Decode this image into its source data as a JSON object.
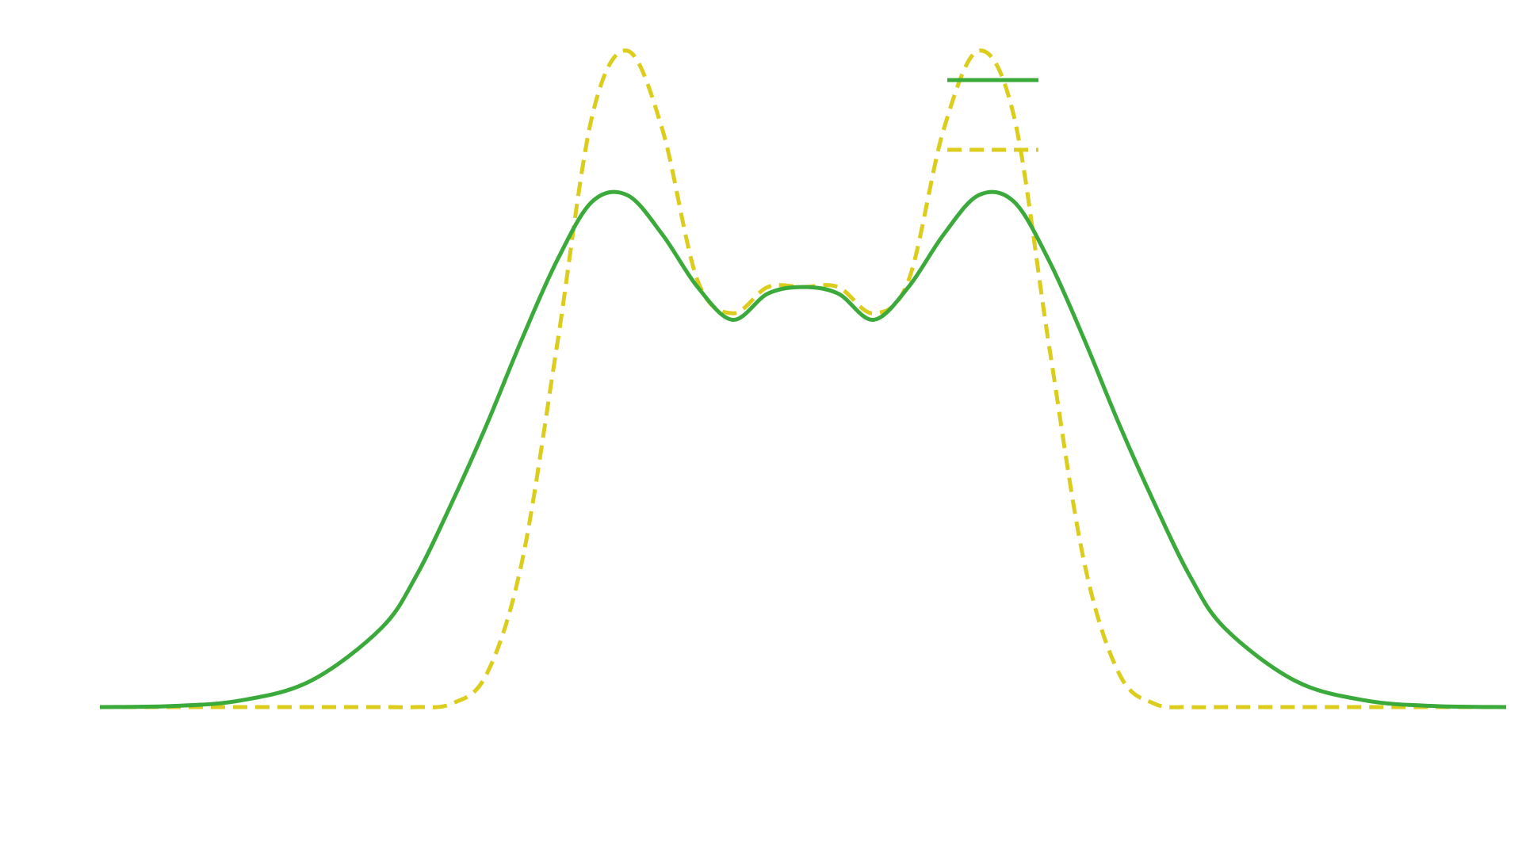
{
  "chart_data": {
    "type": "line",
    "title": "",
    "xlabel": "",
    "ylabel": "",
    "xlim": [
      -5,
      5
    ],
    "ylim": [
      0,
      1
    ],
    "grid": false,
    "legend": {
      "placement": "top-right",
      "entries": 2
    },
    "x": [
      -5.0,
      -4.5,
      -4.0,
      -3.5,
      -3.0,
      -2.75,
      -2.5,
      -2.25,
      -2.0,
      -1.75,
      -1.5,
      -1.25,
      -1.0,
      -0.75,
      -0.5,
      -0.25,
      0.0,
      0.25,
      0.5,
      0.75,
      1.0,
      1.25,
      1.5,
      1.75,
      2.0,
      2.25,
      2.5,
      2.75,
      3.0,
      3.5,
      4.0,
      4.5,
      5.0
    ],
    "series": [
      {
        "style": "solid",
        "color": "#3aaa3a",
        "values": [
          0.0,
          0.0015,
          0.01,
          0.04,
          0.12,
          0.2,
          0.31,
          0.43,
          0.56,
          0.68,
          0.77,
          0.78,
          0.72,
          0.64,
          0.59,
          0.63,
          0.64,
          0.63,
          0.59,
          0.64,
          0.72,
          0.78,
          0.77,
          0.68,
          0.56,
          0.43,
          0.31,
          0.2,
          0.12,
          0.04,
          0.01,
          0.0015,
          0.0
        ]
      },
      {
        "style": "dashed",
        "color": "#dccc1c",
        "values": [
          0.0,
          0.0,
          0.0,
          0.0,
          0.0,
          0.0,
          0.005,
          0.05,
          0.22,
          0.55,
          0.9,
          1.0,
          0.88,
          0.65,
          0.6,
          0.64,
          0.64,
          0.64,
          0.6,
          0.65,
          0.88,
          1.0,
          0.9,
          0.55,
          0.22,
          0.05,
          0.005,
          0.0,
          0.0,
          0.0,
          0.0,
          0.0,
          0.0
        ]
      }
    ]
  }
}
